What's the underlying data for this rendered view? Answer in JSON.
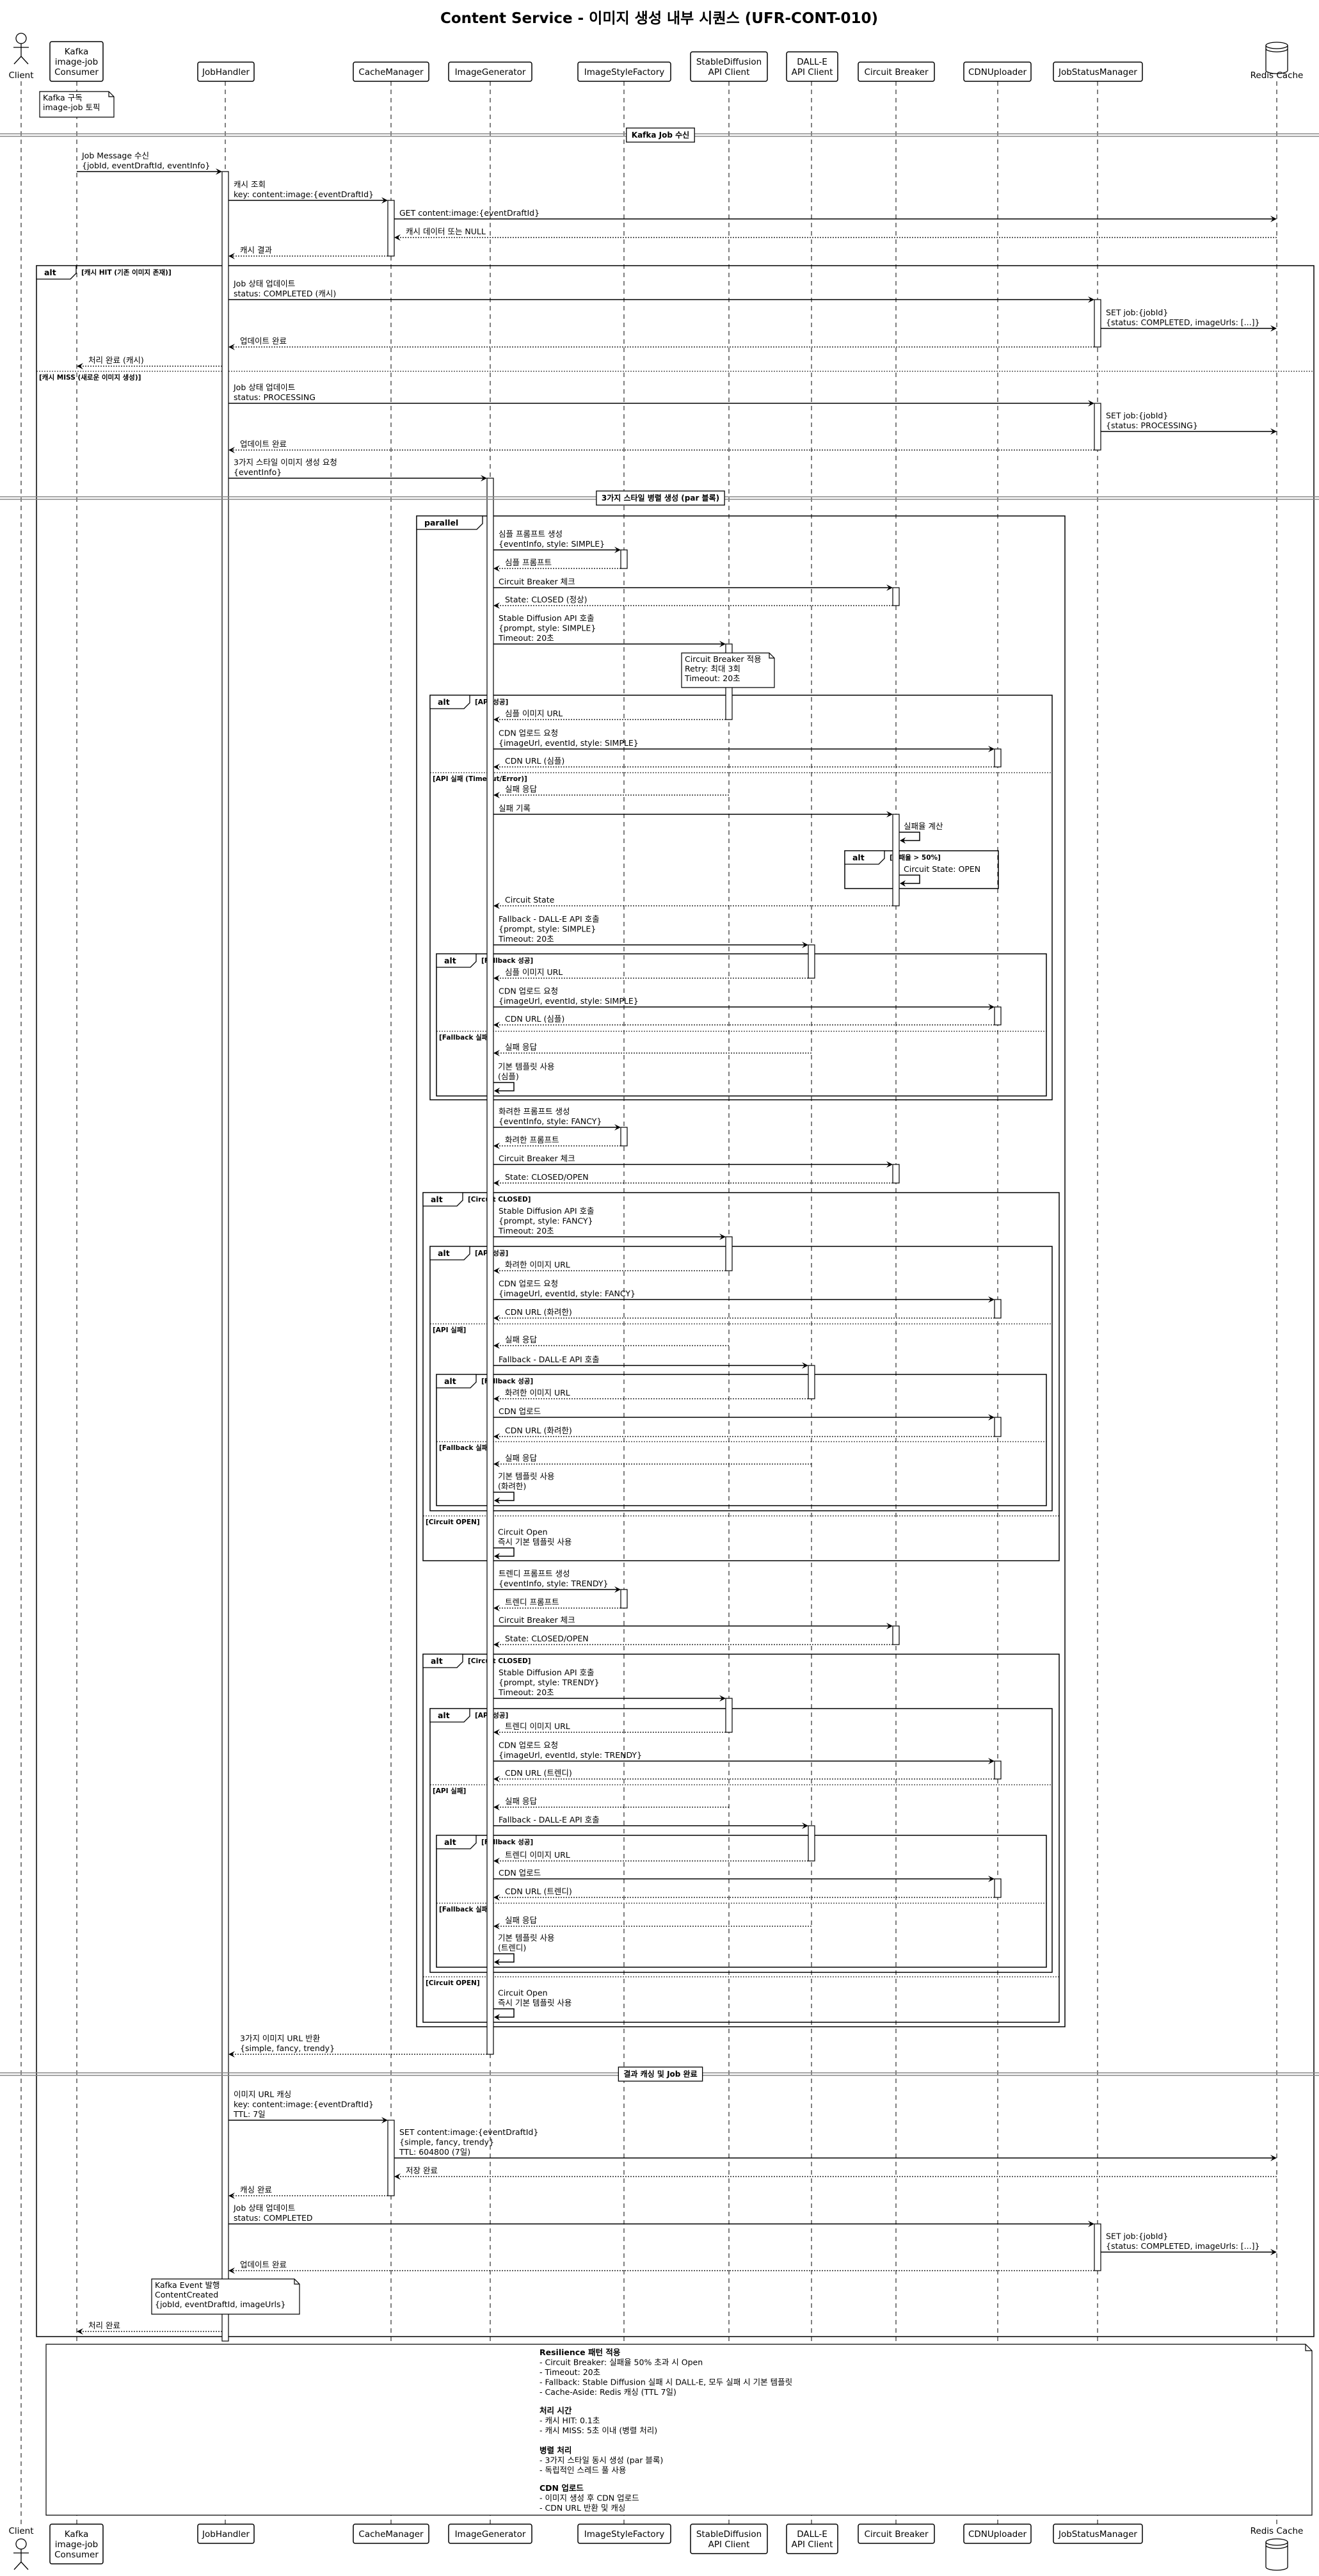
{
  "title": "Content Service - 이미지 생성 내부 시퀀스 (UFR-CONT-010)",
  "participants": [
    {
      "key": "client",
      "kind": "actor",
      "label": [
        "Client"
      ]
    },
    {
      "key": "kafka",
      "kind": "box",
      "label": [
        "Kafka",
        "image-job",
        "Consumer"
      ]
    },
    {
      "key": "jh",
      "kind": "box",
      "label": [
        "JobHandler"
      ]
    },
    {
      "key": "cm",
      "kind": "box",
      "label": [
        "CacheManager"
      ]
    },
    {
      "key": "ig",
      "kind": "box",
      "label": [
        "ImageGenerator"
      ]
    },
    {
      "key": "isf",
      "kind": "box",
      "label": [
        "ImageStyleFactory"
      ]
    },
    {
      "key": "sd",
      "kind": "box",
      "label": [
        "StableDiffusion",
        "API Client"
      ]
    },
    {
      "key": "dalle",
      "kind": "box",
      "label": [
        "DALL-E",
        "API Client"
      ]
    },
    {
      "key": "cb",
      "kind": "box",
      "label": [
        "Circuit Breaker"
      ]
    },
    {
      "key": "cdn",
      "kind": "box",
      "label": [
        "CDNUploader"
      ]
    },
    {
      "key": "jsm",
      "kind": "box",
      "label": [
        "JobStatusManager"
      ]
    },
    {
      "key": "redis",
      "kind": "database",
      "label": [
        "Redis Cache"
      ]
    }
  ],
  "dividers": [
    {
      "text": "Kafka Job 수신"
    },
    {
      "text": "3가지 스타일 병렬 생성 (par 블록)"
    },
    {
      "text": "결과 캐싱 및 Job 완료"
    }
  ],
  "notes": [
    {
      "text": [
        "Kafka 구독",
        "image-job 토픽"
      ]
    },
    {
      "text": [
        "Circuit Breaker 적용",
        "Retry: 최대 3회",
        "Timeout: 20초"
      ]
    },
    {
      "text": [
        "Kafka Event 발행",
        "ContentCreated",
        "{jobId, eventDraftId, imageUrls}"
      ]
    }
  ],
  "frames": [
    {
      "type": "alt",
      "guards": [
        "[캐시 HIT (기존 이미지 존재)]",
        "[캐시 MISS (새로운 이미지 생성)]"
      ]
    },
    {
      "type": "parallel",
      "guards": []
    },
    {
      "type": "alt",
      "guards": [
        "[API 성공]",
        "[API 실패 (Timeout/Error)]"
      ]
    },
    {
      "type": "alt",
      "guards": [
        "[실패율 > 50%]"
      ]
    },
    {
      "type": "alt",
      "guards": [
        "[Fallback 성공]",
        "[Fallback 실패]"
      ]
    },
    {
      "type": "alt",
      "guards": [
        "[Circuit CLOSED]",
        "[Circuit OPEN]"
      ]
    },
    {
      "type": "alt",
      "guards": [
        "[API 성공]",
        "[API 실패]"
      ]
    },
    {
      "type": "alt",
      "guards": [
        "[Fallback 성공]",
        "[Fallback 실패]"
      ]
    },
    {
      "type": "alt",
      "guards": [
        "[Circuit CLOSED]",
        "[Circuit OPEN]"
      ]
    },
    {
      "type": "alt",
      "guards": [
        "[API 성공]",
        "[API 실패]"
      ]
    },
    {
      "type": "alt",
      "guards": [
        "[Fallback 성공]",
        "[Fallback 실패]"
      ]
    }
  ],
  "messages": [
    {
      "from": "kafka",
      "to": "jh",
      "dashed": false,
      "text": [
        "Job Message 수신",
        "{jobId, eventDraftId, eventInfo}"
      ]
    },
    {
      "from": "jh",
      "to": "cm",
      "dashed": false,
      "text": [
        "캐시 조회",
        "key: content:image:{eventDraftId}"
      ]
    },
    {
      "from": "cm",
      "to": "redis",
      "dashed": false,
      "text": [
        "GET content:image:{eventDraftId}"
      ]
    },
    {
      "from": "redis",
      "to": "cm",
      "dashed": true,
      "text": [
        "캐시 데이터 또는 NULL"
      ]
    },
    {
      "from": "cm",
      "to": "jh",
      "dashed": true,
      "text": [
        "캐시 결과"
      ]
    },
    {
      "from": "jh",
      "to": "jsm",
      "dashed": false,
      "text": [
        "Job 상태 업데이트",
        "status: COMPLETED (캐시)"
      ]
    },
    {
      "from": "jsm",
      "to": "redis",
      "dashed": false,
      "text": [
        "SET job:{jobId}",
        "{status: COMPLETED, imageUrls: [...]}"
      ]
    },
    {
      "from": "jsm",
      "to": "jh",
      "dashed": true,
      "text": [
        "업데이트 완료"
      ]
    },
    {
      "from": "jh",
      "to": "kafka",
      "dashed": true,
      "text": [
        "처리 완료 (캐시)"
      ]
    },
    {
      "from": "jh",
      "to": "jsm",
      "dashed": false,
      "text": [
        "Job 상태 업데이트",
        "status: PROCESSING"
      ]
    },
    {
      "from": "jsm",
      "to": "redis",
      "dashed": false,
      "text": [
        "SET job:{jobId}",
        "{status: PROCESSING}"
      ]
    },
    {
      "from": "jsm",
      "to": "jh",
      "dashed": true,
      "text": [
        "업데이트 완료"
      ]
    },
    {
      "from": "jh",
      "to": "ig",
      "dashed": false,
      "text": [
        "3가지 스타일 이미지 생성 요청",
        "{eventInfo}"
      ]
    },
    {
      "from": "ig",
      "to": "isf",
      "dashed": false,
      "text": [
        "심플 프롬프트 생성",
        "{eventInfo, style: SIMPLE}"
      ]
    },
    {
      "from": "isf",
      "to": "ig",
      "dashed": true,
      "text": [
        "심플 프롬프트"
      ]
    },
    {
      "from": "ig",
      "to": "cb",
      "dashed": false,
      "text": [
        "Circuit Breaker 체크"
      ]
    },
    {
      "from": "cb",
      "to": "ig",
      "dashed": true,
      "text": [
        "State: CLOSED (정상)"
      ]
    },
    {
      "from": "ig",
      "to": "sd",
      "dashed": false,
      "text": [
        "Stable Diffusion API 호출",
        "{prompt, style: SIMPLE}",
        "Timeout: 20초"
      ]
    },
    {
      "from": "sd",
      "to": "ig",
      "dashed": true,
      "text": [
        "심플 이미지 URL"
      ]
    },
    {
      "from": "ig",
      "to": "cdn",
      "dashed": false,
      "text": [
        "CDN 업로드 요청",
        "{imageUrl, eventId, style: SIMPLE}"
      ]
    },
    {
      "from": "cdn",
      "to": "ig",
      "dashed": true,
      "text": [
        "CDN URL (심플)"
      ]
    },
    {
      "from": "sd",
      "to": "ig",
      "dashed": true,
      "text": [
        "실패 응답"
      ]
    },
    {
      "from": "ig",
      "to": "cb",
      "dashed": false,
      "text": [
        "실패 기록"
      ]
    },
    {
      "from": "cb",
      "to": "cb",
      "dashed": false,
      "text": [
        "실패율 계산"
      ]
    },
    {
      "from": "cb",
      "to": "cb",
      "dashed": false,
      "text": [
        "Circuit State: OPEN"
      ]
    },
    {
      "from": "cb",
      "to": "ig",
      "dashed": true,
      "text": [
        "Circuit State"
      ]
    },
    {
      "from": "ig",
      "to": "dalle",
      "dashed": false,
      "text": [
        "Fallback - DALL-E API 호출",
        "{prompt, style: SIMPLE}",
        "Timeout: 20초"
      ]
    },
    {
      "from": "dalle",
      "to": "ig",
      "dashed": true,
      "text": [
        "심플 이미지 URL"
      ]
    },
    {
      "from": "ig",
      "to": "cdn",
      "dashed": false,
      "text": [
        "CDN 업로드 요청",
        "{imageUrl, eventId, style: SIMPLE}"
      ]
    },
    {
      "from": "cdn",
      "to": "ig",
      "dashed": true,
      "text": [
        "CDN URL (심플)"
      ]
    },
    {
      "from": "dalle",
      "to": "ig",
      "dashed": true,
      "text": [
        "실패 응답"
      ]
    },
    {
      "from": "ig",
      "to": "ig",
      "dashed": false,
      "text": [
        "기본 템플릿 사용",
        "(심플)"
      ]
    },
    {
      "from": "ig",
      "to": "isf",
      "dashed": false,
      "text": [
        "화려한 프롬프트 생성",
        "{eventInfo, style: FANCY}"
      ]
    },
    {
      "from": "isf",
      "to": "ig",
      "dashed": true,
      "text": [
        "화려한 프롬프트"
      ]
    },
    {
      "from": "ig",
      "to": "cb",
      "dashed": false,
      "text": [
        "Circuit Breaker 체크"
      ]
    },
    {
      "from": "cb",
      "to": "ig",
      "dashed": true,
      "text": [
        "State: CLOSED/OPEN"
      ]
    },
    {
      "from": "ig",
      "to": "sd",
      "dashed": false,
      "text": [
        "Stable Diffusion API 호출",
        "{prompt, style: FANCY}",
        "Timeout: 20초"
      ]
    },
    {
      "from": "sd",
      "to": "ig",
      "dashed": true,
      "text": [
        "화려한 이미지 URL"
      ]
    },
    {
      "from": "ig",
      "to": "cdn",
      "dashed": false,
      "text": [
        "CDN 업로드 요청",
        "{imageUrl, eventId, style: FANCY}"
      ]
    },
    {
      "from": "cdn",
      "to": "ig",
      "dashed": true,
      "text": [
        "CDN URL (화려한)"
      ]
    },
    {
      "from": "sd",
      "to": "ig",
      "dashed": true,
      "text": [
        "실패 응답"
      ]
    },
    {
      "from": "ig",
      "to": "dalle",
      "dashed": false,
      "text": [
        "Fallback - DALL-E API 호출"
      ]
    },
    {
      "from": "dalle",
      "to": "ig",
      "dashed": true,
      "text": [
        "화려한 이미지 URL"
      ]
    },
    {
      "from": "ig",
      "to": "cdn",
      "dashed": false,
      "text": [
        "CDN 업로드"
      ]
    },
    {
      "from": "cdn",
      "to": "ig",
      "dashed": true,
      "text": [
        "CDN URL (화려한)"
      ]
    },
    {
      "from": "dalle",
      "to": "ig",
      "dashed": true,
      "text": [
        "실패 응답"
      ]
    },
    {
      "from": "ig",
      "to": "ig",
      "dashed": false,
      "text": [
        "기본 템플릿 사용",
        "(화려한)"
      ]
    },
    {
      "from": "ig",
      "to": "ig",
      "dashed": false,
      "text": [
        "Circuit Open",
        "즉시 기본 템플릿 사용"
      ]
    },
    {
      "from": "ig",
      "to": "isf",
      "dashed": false,
      "text": [
        "트렌디 프롬프트 생성",
        "{eventInfo, style: TRENDY}"
      ]
    },
    {
      "from": "isf",
      "to": "ig",
      "dashed": true,
      "text": [
        "트렌디 프롬프트"
      ]
    },
    {
      "from": "ig",
      "to": "cb",
      "dashed": false,
      "text": [
        "Circuit Breaker 체크"
      ]
    },
    {
      "from": "cb",
      "to": "ig",
      "dashed": true,
      "text": [
        "State: CLOSED/OPEN"
      ]
    },
    {
      "from": "ig",
      "to": "sd",
      "dashed": false,
      "text": [
        "Stable Diffusion API 호출",
        "{prompt, style: TRENDY}",
        "Timeout: 20초"
      ]
    },
    {
      "from": "sd",
      "to": "ig",
      "dashed": true,
      "text": [
        "트렌디 이미지 URL"
      ]
    },
    {
      "from": "ig",
      "to": "cdn",
      "dashed": false,
      "text": [
        "CDN 업로드 요청",
        "{imageUrl, eventId, style: TRENDY}"
      ]
    },
    {
      "from": "cdn",
      "to": "ig",
      "dashed": true,
      "text": [
        "CDN URL (트렌디)"
      ]
    },
    {
      "from": "sd",
      "to": "ig",
      "dashed": true,
      "text": [
        "실패 응답"
      ]
    },
    {
      "from": "ig",
      "to": "dalle",
      "dashed": false,
      "text": [
        "Fallback - DALL-E API 호출"
      ]
    },
    {
      "from": "dalle",
      "to": "ig",
      "dashed": true,
      "text": [
        "트렌디 이미지 URL"
      ]
    },
    {
      "from": "ig",
      "to": "cdn",
      "dashed": false,
      "text": [
        "CDN 업로드"
      ]
    },
    {
      "from": "cdn",
      "to": "ig",
      "dashed": true,
      "text": [
        "CDN URL (트렌디)"
      ]
    },
    {
      "from": "dalle",
      "to": "ig",
      "dashed": true,
      "text": [
        "실패 응답"
      ]
    },
    {
      "from": "ig",
      "to": "ig",
      "dashed": false,
      "text": [
        "기본 템플릿 사용",
        "(트렌디)"
      ]
    },
    {
      "from": "ig",
      "to": "ig",
      "dashed": false,
      "text": [
        "Circuit Open",
        "즉시 기본 템플릿 사용"
      ]
    },
    {
      "from": "ig",
      "to": "jh",
      "dashed": true,
      "text": [
        "3가지 이미지 URL 반환",
        "{simple, fancy, trendy}"
      ]
    },
    {
      "from": "jh",
      "to": "cm",
      "dashed": false,
      "text": [
        "이미지 URL 캐싱",
        "key: content:image:{eventDraftId}",
        "TTL: 7일"
      ]
    },
    {
      "from": "cm",
      "to": "redis",
      "dashed": false,
      "text": [
        "SET content:image:{eventDraftId}",
        "{simple, fancy, trendy}",
        "TTL: 604800 (7일)"
      ]
    },
    {
      "from": "redis",
      "to": "cm",
      "dashed": true,
      "text": [
        "저장 완료"
      ]
    },
    {
      "from": "cm",
      "to": "jh",
      "dashed": true,
      "text": [
        "캐싱 완료"
      ]
    },
    {
      "from": "jh",
      "to": "jsm",
      "dashed": false,
      "text": [
        "Job 상태 업데이트",
        "status: COMPLETED"
      ]
    },
    {
      "from": "jsm",
      "to": "redis",
      "dashed": false,
      "text": [
        "SET job:{jobId}",
        "{status: COMPLETED, imageUrls: [...]}"
      ]
    },
    {
      "from": "jsm",
      "to": "jh",
      "dashed": true,
      "text": [
        "업데이트 완료"
      ]
    },
    {
      "from": "jh",
      "to": "kafka",
      "dashed": true,
      "text": [
        "처리 완료"
      ]
    }
  ],
  "summary_note": {
    "sections": [
      {
        "heading": "Resilience 패턴 적용",
        "items": [
          "- Circuit Breaker: 실패율 50% 초과 시 Open",
          "- Timeout: 20초",
          "- Fallback: Stable Diffusion 실패 시 DALL-E, 모두 실패 시 기본 템플릿",
          "- Cache-Aside: Redis 캐싱 (TTL 7일)"
        ]
      },
      {
        "heading": "처리 시간",
        "items": [
          "- 캐시 HIT: 0.1초",
          "- 캐시 MISS: 5초 이내 (병렬 처리)"
        ]
      },
      {
        "heading": "병렬 처리",
        "items": [
          "- 3가지 스타일 동시 생성 (par 블록)",
          "- 독립적인 스레드 풀 사용"
        ]
      },
      {
        "heading": "CDN 업로드",
        "items": [
          "- 이미지 생성 후 CDN 업로드",
          "- CDN URL 반환 및 캐싱"
        ]
      }
    ]
  }
}
